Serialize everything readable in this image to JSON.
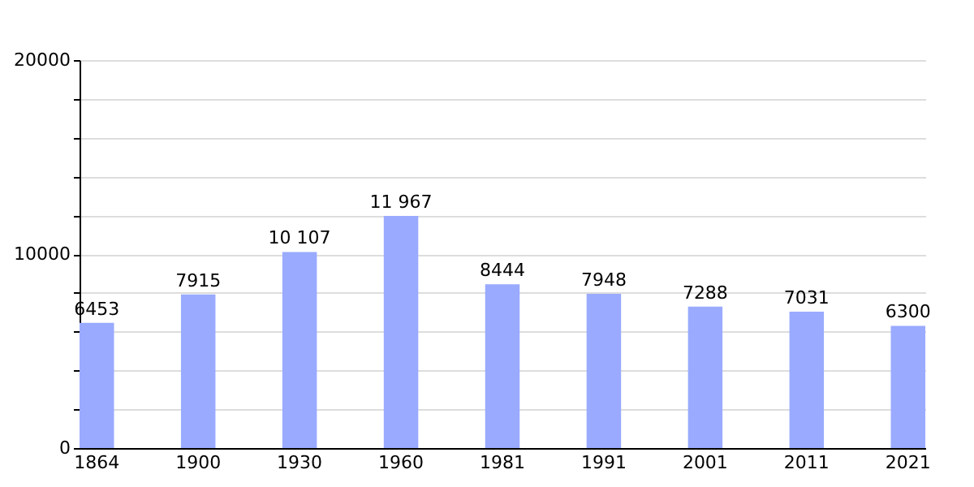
{
  "chart_data": {
    "type": "bar",
    "categories": [
      "1864",
      "1900",
      "1930",
      "1960",
      "1981",
      "1991",
      "2001",
      "2011",
      "2021"
    ],
    "values": [
      6453,
      7915,
      10107,
      11967,
      8444,
      7948,
      7288,
      7031,
      6300
    ],
    "value_labels": [
      "6453",
      "7915",
      "10 107",
      "11 967",
      "8444",
      "7948",
      "7288",
      "7031",
      "6300"
    ],
    "color": "#99aaff",
    "ylim": [
      0,
      20000
    ],
    "yticks": [
      0,
      {
        "value": 2000,
        "label": null
      },
      {
        "value": 4000,
        "label": null
      },
      {
        "value": 6000,
        "label": null
      },
      {
        "value": 8000,
        "label": null
      },
      10000,
      {
        "value": 12000,
        "label": null
      },
      {
        "value": 14000,
        "label": null
      },
      {
        "value": 16000,
        "label": null
      },
      {
        "value": 18000,
        "label": null
      },
      20000
    ],
    "grid": "y"
  }
}
